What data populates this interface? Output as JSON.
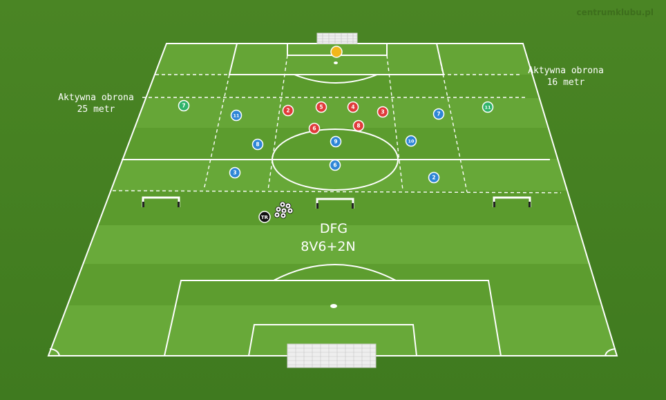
{
  "watermark": "centrumklubu.pl",
  "labels": {
    "left_zone_line1": "Aktywna obrona",
    "left_zone_line2": "25 metr",
    "right_zone_line1": "Aktywna obrona",
    "right_zone_line2": "16 metr",
    "drill_name": "DFG",
    "drill_format": "8V6+2N"
  },
  "coach_label": "TR",
  "colors": {
    "pitch_light": "#6aaa35",
    "pitch_dark": "#5b9a2c",
    "line": "#ffffff",
    "team_red": "#e03a3a",
    "team_blue": "#2e86d6",
    "neutral_green": "#2fb36a",
    "goalkeeper_yellow": "#f2b71b",
    "coach_black": "#111111"
  },
  "players": {
    "red": [
      "2",
      "5",
      "4",
      "3",
      "6",
      "8"
    ],
    "blue": [
      "11",
      "7",
      "8",
      "9",
      "10",
      "3",
      "6",
      "2"
    ],
    "green": [
      "7",
      "11"
    ],
    "goalkeeper": [
      ""
    ]
  },
  "equipment": {
    "mini_goals": 3,
    "full_goals": 2,
    "balls": 7
  }
}
